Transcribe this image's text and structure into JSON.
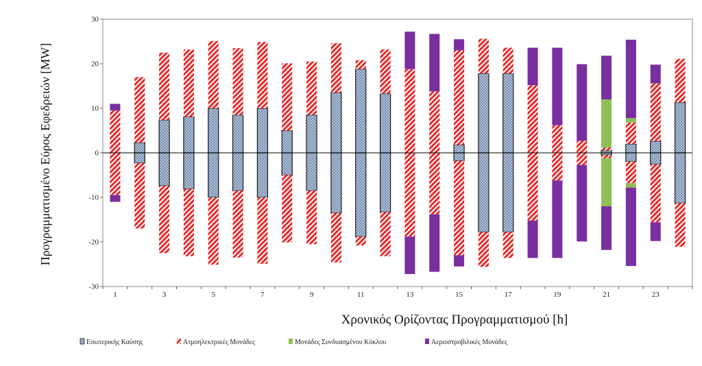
{
  "chart_data": {
    "type": "bar",
    "subtype": "stacked-range",
    "title": "",
    "xlabel": "Χρονικός Ορίζοντας Προγραμματισμού [h]",
    "ylabel": "Προγραμματισμένο Εύρος Εφεδρειών [MW]",
    "ylim": [
      -30,
      30
    ],
    "yticks": [
      30,
      20,
      10,
      0,
      -10,
      -20,
      -30
    ],
    "x": [
      1,
      2,
      3,
      4,
      5,
      6,
      7,
      8,
      9,
      10,
      11,
      12,
      13,
      14,
      15,
      16,
      17,
      18,
      19,
      20,
      21,
      22,
      23,
      24
    ],
    "xtick_labels": [
      "1",
      "3",
      "5",
      "7",
      "9",
      "11",
      "13",
      "15",
      "17",
      "19",
      "21",
      "23"
    ],
    "grid": false,
    "legend_position": "bottom",
    "symmetric": true,
    "series": [
      {
        "name": "Εσωτερικής Καύσης",
        "color": "#b7c9e2",
        "pattern": "crosshatch",
        "values": [
          0,
          2.3,
          7.4,
          8.1,
          10.0,
          8.5,
          10.0,
          5.0,
          8.5,
          13.5,
          18.8,
          13.3,
          0,
          0,
          1.8,
          17.8,
          17.8,
          0,
          0,
          0,
          0.5,
          2.0,
          2.6,
          11.3
        ]
      },
      {
        "name": "Ατμοηλεκτρικές Μονάδες",
        "color": "#e8292a",
        "pattern": "diagonal",
        "values": [
          9.5,
          14.7,
          15.1,
          15.1,
          15.1,
          15.0,
          14.9,
          15.1,
          12.0,
          11.1,
          2.0,
          9.9,
          18.8,
          13.8,
          21.2,
          7.8,
          5.8,
          15.2,
          6.2,
          2.7,
          0.7,
          4.8,
          13.0,
          9.8
        ]
      },
      {
        "name": "Μονάδες Συνδυασμένου Κύκλου",
        "color": "#8fbe55",
        "pattern": "solid",
        "values": [
          0,
          0,
          0,
          0,
          0,
          0,
          0,
          0,
          0,
          0,
          0,
          0,
          0,
          0,
          0,
          0,
          0,
          0,
          0,
          0,
          10.8,
          1.0,
          0,
          0
        ]
      },
      {
        "name": "Αεριοστροβιλικές Μονάδες",
        "color": "#7a2fa0",
        "pattern": "solid",
        "values": [
          1.5,
          0,
          0,
          0,
          0,
          0,
          0,
          0,
          0,
          0,
          0,
          0,
          8.4,
          12.9,
          2.5,
          0,
          0,
          8.4,
          17.4,
          17.2,
          9.8,
          17.6,
          4.2,
          0
        ]
      }
    ]
  }
}
